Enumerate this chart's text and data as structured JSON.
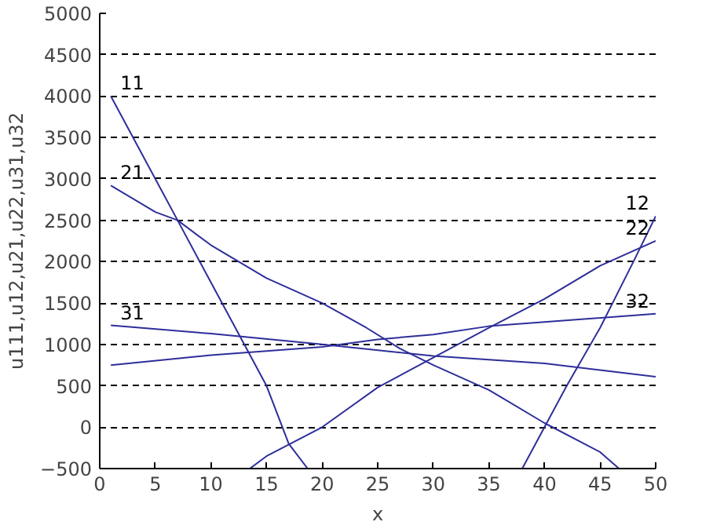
{
  "chart_data": {
    "type": "line",
    "xlabel": "x",
    "ylabel": "u111,u12,u21,u22,u31,u32",
    "xlim": [
      0,
      50
    ],
    "ylim": [
      -500,
      5000
    ],
    "xticks": [
      0,
      5,
      10,
      15,
      20,
      25,
      30,
      35,
      40,
      45,
      50
    ],
    "yticks": [
      -500,
      0,
      500,
      1000,
      1500,
      2000,
      2500,
      3000,
      3500,
      4000,
      4500,
      5000
    ],
    "grid": "y",
    "line_style": "solid",
    "series": [
      {
        "name": "11",
        "color": "#2e2e9a",
        "x": [
          1,
          3,
          7,
          10,
          13,
          15,
          17,
          18.7
        ],
        "values": [
          4000,
          3500,
          2500,
          1750,
          1000,
          500,
          -200,
          -500
        ]
      },
      {
        "name": "12",
        "color": "#2e2e9a",
        "x": [
          38,
          40,
          42,
          45,
          48,
          50
        ],
        "values": [
          -500,
          0,
          500,
          1200,
          2000,
          2550
        ]
      },
      {
        "name": "21",
        "color": "#2e2e9a",
        "x": [
          1,
          5,
          7,
          10,
          15,
          20,
          24,
          27,
          30,
          35,
          40,
          45,
          46.7
        ],
        "values": [
          2920,
          2600,
          2500,
          2200,
          1800,
          1500,
          1200,
          950,
          750,
          450,
          50,
          -300,
          -500
        ]
      },
      {
        "name": "22",
        "color": "#2e2e9a",
        "x": [
          13.5,
          15,
          20,
          25,
          30,
          35,
          40,
          45,
          50
        ],
        "values": [
          -500,
          -350,
          0,
          480,
          840,
          1200,
          1550,
          1950,
          2250
        ]
      },
      {
        "name": "31",
        "color": "#2e2e9a",
        "x": [
          1,
          10,
          20,
          30,
          40,
          45,
          50
        ],
        "values": [
          1230,
          1130,
          1000,
          860,
          770,
          690,
          610
        ]
      },
      {
        "name": "32",
        "color": "#2e2e9a",
        "x": [
          1,
          10,
          20,
          25,
          30,
          35,
          40,
          50
        ],
        "values": [
          750,
          870,
          970,
          1060,
          1120,
          1220,
          1270,
          1370
        ]
      }
    ]
  }
}
